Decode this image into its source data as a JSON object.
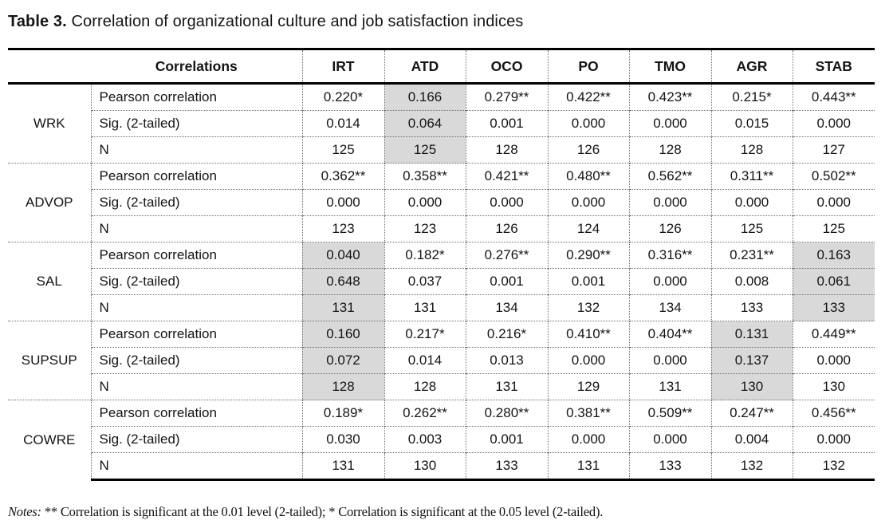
{
  "page": {
    "background": "#ffffff",
    "text_color": "#141414",
    "shaded_cell_color": "#d9d9d9",
    "rule_color": "#000000",
    "dotted_rule_color": "#6e6e6e"
  },
  "title": {
    "label": "Table 3.",
    "text": "Correlation of organizational culture and job satisfaction indices"
  },
  "table": {
    "header_label": "Correlations",
    "columns": [
      "IRT",
      "ATD",
      "OCO",
      "PO",
      "TMO",
      "AGR",
      "STAB"
    ],
    "metric_labels": [
      "Pearson correlation",
      "Sig. (2-tailed)",
      "N"
    ],
    "shading_meaning": "gray cells mark correlations not significant at the 0.05 level",
    "groups": [
      {
        "name": "WRK",
        "pearson": [
          "0.220*",
          "0.166",
          "0.279**",
          "0.422**",
          "0.423**",
          "0.215*",
          "0.443**"
        ],
        "sig": [
          "0.014",
          "0.064",
          "0.001",
          "0.000",
          "0.000",
          "0.015",
          "0.000"
        ],
        "n": [
          "125",
          "125",
          "128",
          "126",
          "128",
          "128",
          "127"
        ],
        "shaded_columns": [
          "ATD"
        ]
      },
      {
        "name": "ADVOP",
        "pearson": [
          "0.362**",
          "0.358**",
          "0.421**",
          "0.480**",
          "0.562**",
          "0.311**",
          "0.502**"
        ],
        "sig": [
          "0.000",
          "0.000",
          "0.000",
          "0.000",
          "0.000",
          "0.000",
          "0.000"
        ],
        "n": [
          "123",
          "123",
          "126",
          "124",
          "126",
          "125",
          "125"
        ],
        "shaded_columns": []
      },
      {
        "name": "SAL",
        "pearson": [
          "0.040",
          "0.182*",
          "0.276**",
          "0.290**",
          "0.316**",
          "0.231**",
          "0.163"
        ],
        "sig": [
          "0.648",
          "0.037",
          "0.001",
          "0.001",
          "0.000",
          "0.008",
          "0.061"
        ],
        "n": [
          "131",
          "131",
          "134",
          "132",
          "134",
          "133",
          "133"
        ],
        "shaded_columns": [
          "IRT",
          "STAB"
        ]
      },
      {
        "name": "SUPSUP",
        "pearson": [
          "0.160",
          "0.217*",
          "0.216*",
          "0.410**",
          "0.404**",
          "0.131",
          "0.449**"
        ],
        "sig": [
          "0.072",
          "0.014",
          "0.013",
          "0.000",
          "0.000",
          "0.137",
          "0.000"
        ],
        "n": [
          "128",
          "128",
          "131",
          "129",
          "131",
          "130",
          "130"
        ],
        "shaded_columns": [
          "IRT",
          "AGR"
        ]
      },
      {
        "name": "COWRE",
        "pearson": [
          "0.189*",
          "0.262**",
          "0.280**",
          "0.381**",
          "0.509**",
          "0.247**",
          "0.456**"
        ],
        "sig": [
          "0.030",
          "0.003",
          "0.001",
          "0.000",
          "0.000",
          "0.004",
          "0.000"
        ],
        "n": [
          "131",
          "130",
          "133",
          "131",
          "133",
          "132",
          "132"
        ],
        "shaded_columns": []
      }
    ]
  },
  "notes": {
    "label": "Notes:",
    "text": "** Correlation is significant at the 0.01 level (2-tailed); * Correlation is significant at the 0.05 level (2-tailed)."
  }
}
